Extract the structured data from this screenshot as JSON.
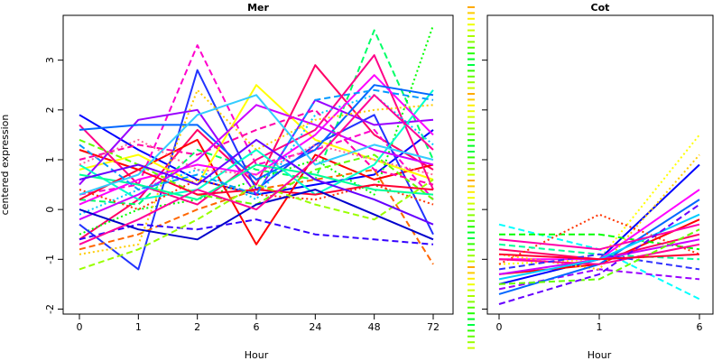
{
  "chart_data": {
    "type": "line",
    "ylabel": "centered expression",
    "ylim": [
      -2.1,
      3.9
    ],
    "yticks": [
      -2,
      -1,
      0,
      1,
      2,
      3
    ],
    "panels": [
      {
        "title": "Mer",
        "xlabel": "Hour",
        "categories": [
          "0",
          "1",
          "2",
          "6",
          "24",
          "48",
          "72"
        ],
        "series": [
          {
            "color": "#0000ff",
            "dash": "solid",
            "values": [
              1.9,
              1.2,
              0.6,
              0.3,
              0.5,
              0.7,
              1.6
            ]
          },
          {
            "color": "#ff0066",
            "dash": "solid",
            "values": [
              -0.6,
              0.2,
              1.6,
              0.5,
              2.9,
              1.5,
              0.8
            ]
          },
          {
            "color": "#00ff66",
            "dash": "dashed",
            "values": [
              0.2,
              0.1,
              1.2,
              0.8,
              0.6,
              3.6,
              1.0
            ]
          },
          {
            "color": "#00ff00",
            "dash": "dotted",
            "values": [
              -0.5,
              0.0,
              0.2,
              0.6,
              1.0,
              0.3,
              3.7
            ]
          },
          {
            "color": "#ff00cc",
            "dash": "dashed",
            "values": [
              0.3,
              0.5,
              3.3,
              0.9,
              1.2,
              1.6,
              0.2
            ]
          },
          {
            "color": "#ff0000",
            "dash": "solid",
            "values": [
              1.2,
              0.8,
              1.4,
              -0.7,
              1.1,
              0.6,
              0.9
            ]
          },
          {
            "color": "#2233ff",
            "dash": "solid",
            "values": [
              -0.3,
              -1.2,
              2.8,
              0.4,
              1.3,
              1.9,
              -0.5
            ]
          },
          {
            "color": "#ffff00",
            "dash": "solid",
            "values": [
              0.8,
              1.1,
              0.5,
              2.5,
              1.4,
              1.0,
              0.6
            ]
          },
          {
            "color": "#ff0088",
            "dash": "solid",
            "values": [
              1.7,
              0.5,
              0.1,
              1.0,
              1.6,
              3.1,
              0.4
            ]
          },
          {
            "color": "#00ccff",
            "dash": "dotted",
            "values": [
              -0.1,
              0.4,
              0.8,
              0.2,
              1.9,
              2.3,
              1.3
            ]
          },
          {
            "color": "#9900ff",
            "dash": "solid",
            "values": [
              0.5,
              1.8,
              2.0,
              0.3,
              2.2,
              1.7,
              1.8
            ]
          },
          {
            "color": "#ff6600",
            "dash": "dashed",
            "values": [
              -0.8,
              -0.5,
              0.0,
              0.4,
              0.6,
              0.8,
              -1.1
            ]
          },
          {
            "color": "#00ffcc",
            "dash": "solid",
            "values": [
              0.9,
              0.2,
              0.4,
              1.2,
              0.3,
              0.9,
              2.4
            ]
          },
          {
            "color": "#3300ff",
            "dash": "dashed",
            "values": [
              -0.6,
              -0.3,
              -0.4,
              -0.2,
              -0.5,
              -0.6,
              -0.7
            ]
          },
          {
            "color": "#ff00ff",
            "dash": "solid",
            "values": [
              0.1,
              0.6,
              0.9,
              0.7,
              1.5,
              2.7,
              1.5
            ]
          },
          {
            "color": "#66ff00",
            "dash": "dashed",
            "values": [
              1.4,
              0.9,
              0.3,
              0.1,
              0.8,
              1.1,
              0.2
            ]
          },
          {
            "color": "#0066ff",
            "dash": "solid",
            "values": [
              1.6,
              1.7,
              1.7,
              0.6,
              1.2,
              2.5,
              2.3
            ]
          },
          {
            "color": "#ff3300",
            "dash": "dotted",
            "values": [
              0.4,
              0.0,
              0.6,
              0.3,
              0.2,
              0.5,
              0.1
            ]
          },
          {
            "color": "#cc00ff",
            "dash": "solid",
            "values": [
              -0.2,
              0.3,
              1.0,
              2.1,
              1.7,
              1.2,
              0.9
            ]
          },
          {
            "color": "#00ff99",
            "dash": "solid",
            "values": [
              0.7,
              0.5,
              0.2,
              0.9,
              0.7,
              0.4,
              0.3
            ]
          },
          {
            "color": "#ff0033",
            "dash": "solid",
            "values": [
              0.2,
              0.8,
              0.3,
              0.4,
              0.3,
              0.5,
              0.4
            ]
          },
          {
            "color": "#ffcc00",
            "dash": "dotted",
            "values": [
              -0.9,
              -0.7,
              2.4,
              1.2,
              1.8,
              2.0,
              2.1
            ]
          },
          {
            "color": "#0000cc",
            "dash": "solid",
            "values": [
              0.0,
              -0.4,
              -0.6,
              0.1,
              0.4,
              -0.1,
              -0.6
            ]
          },
          {
            "color": "#ff00aa",
            "dash": "dashed",
            "values": [
              1.0,
              1.3,
              1.1,
              1.6,
              2.0,
              0.8,
              0.5
            ]
          },
          {
            "color": "#33ccff",
            "dash": "solid",
            "values": [
              0.3,
              0.7,
              1.9,
              2.3,
              0.9,
              1.3,
              1.0
            ]
          },
          {
            "color": "#99ff00",
            "dash": "dashed",
            "values": [
              -1.2,
              -0.8,
              -0.2,
              0.5,
              0.1,
              -0.2,
              0.6
            ]
          },
          {
            "color": "#ff0099",
            "dash": "solid",
            "values": [
              -0.7,
              -0.2,
              0.4,
              0.0,
              1.0,
              2.3,
              1.2
            ]
          },
          {
            "color": "#0099ff",
            "dash": "dashed",
            "values": [
              1.3,
              0.4,
              0.7,
              0.3,
              2.2,
              2.4,
              2.2
            ]
          },
          {
            "color": "#6600ff",
            "dash": "solid",
            "values": [
              0.6,
              0.9,
              0.5,
              1.4,
              0.6,
              0.2,
              -0.3
            ]
          },
          {
            "color": "#ff6699",
            "dash": "dotted",
            "values": [
              0.9,
              1.4,
              0.8,
              0.7,
              1.3,
              1.0,
              0.7
            ]
          }
        ]
      },
      {
        "title": "Cot",
        "xlabel": "Hour",
        "categories": [
          "0",
          "1",
          "6"
        ],
        "series": [
          {
            "color": "#ffff00",
            "dash": "dotted",
            "values": [
              -1.1,
              -1.0,
              1.5
            ]
          },
          {
            "color": "#00ffff",
            "dash": "dashed",
            "values": [
              -0.3,
              -0.8,
              -1.8
            ]
          },
          {
            "color": "#0000ff",
            "dash": "solid",
            "values": [
              -1.5,
              -1.0,
              0.9
            ]
          },
          {
            "color": "#ff0000",
            "dash": "solid",
            "values": [
              -1.3,
              -1.1,
              -0.2
            ]
          },
          {
            "color": "#00ff00",
            "dash": "dashed",
            "values": [
              -0.5,
              -0.5,
              -0.8
            ]
          },
          {
            "color": "#ff00ff",
            "dash": "solid",
            "values": [
              -1.0,
              -1.0,
              0.4
            ]
          },
          {
            "color": "#ff0066",
            "dash": "solid",
            "values": [
              -0.8,
              -1.0,
              -0.5
            ]
          },
          {
            "color": "#9900ff",
            "dash": "dashed",
            "values": [
              -1.6,
              -1.2,
              -1.4
            ]
          },
          {
            "color": "#ffcc00",
            "dash": "dotted",
            "values": [
              -0.9,
              -1.2,
              1.1
            ]
          },
          {
            "color": "#0066ff",
            "dash": "solid",
            "values": [
              -1.7,
              -1.1,
              0.2
            ]
          },
          {
            "color": "#ff3300",
            "dash": "dotted",
            "values": [
              -1.1,
              -0.1,
              -0.9
            ]
          },
          {
            "color": "#00ff99",
            "dash": "dashed",
            "values": [
              -0.7,
              -0.9,
              -1.0
            ]
          },
          {
            "color": "#cc00ff",
            "dash": "solid",
            "values": [
              -1.3,
              -1.0,
              -0.6
            ]
          },
          {
            "color": "#ff0099",
            "dash": "solid",
            "values": [
              -1.0,
              -1.1,
              -0.7
            ]
          },
          {
            "color": "#3333ff",
            "dash": "dashed",
            "values": [
              -1.2,
              -0.9,
              -1.2
            ]
          },
          {
            "color": "#00ccff",
            "dash": "solid",
            "values": [
              -1.4,
              -1.0,
              -0.1
            ]
          },
          {
            "color": "#ff00aa",
            "dash": "solid",
            "values": [
              -0.6,
              -0.8,
              -0.3
            ]
          },
          {
            "color": "#66ff00",
            "dash": "dashed",
            "values": [
              -1.5,
              -1.4,
              -0.4
            ]
          },
          {
            "color": "#6600ff",
            "dash": "dashed",
            "values": [
              -1.9,
              -1.3,
              0.1
            ]
          },
          {
            "color": "#ff0033",
            "dash": "solid",
            "values": [
              -0.9,
              -1.0,
              -0.9
            ]
          }
        ]
      }
    ]
  }
}
